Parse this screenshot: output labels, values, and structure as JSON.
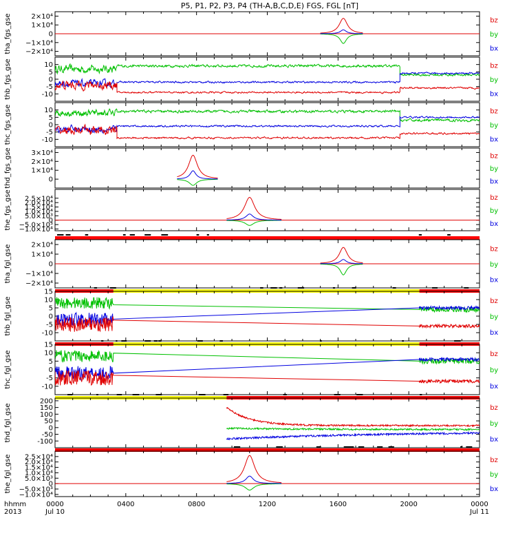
{
  "chart_data": {
    "type": "line",
    "title": "P5, P1, P2, P3, P4 (TH-A,B,C,D,E) FGS, FGL [nT]",
    "x_axis": {
      "tick_labels": [
        "0000",
        "0400",
        "0800",
        "1200",
        "1600",
        "2000",
        "0000"
      ],
      "tick_values_hours": [
        0,
        4,
        8,
        12,
        16,
        20,
        24
      ],
      "date_labels": [
        "Jul 10",
        "Jul 11"
      ],
      "left_labels": [
        "hhmm",
        "2013"
      ],
      "range_hours": [
        0,
        24
      ]
    },
    "components": [
      {
        "label": "bz",
        "color": "#e00000"
      },
      {
        "label": "by",
        "color": "#00c000"
      },
      {
        "label": "bx",
        "color": "#0000e0"
      }
    ],
    "status_bar_colors": {
      "red": "#ff0000",
      "yellow": "#ffff00",
      "black": "#000000"
    },
    "panels": [
      {
        "ylabel": "tha_fgs_gse",
        "ylim": [
          -25000,
          25000
        ],
        "yticks": [
          {
            "v": 20000,
            "t": "2×10⁴"
          },
          {
            "v": 10000,
            "t": "1×10⁴"
          },
          {
            "v": 0,
            "t": "0"
          },
          {
            "v": -10000,
            "t": "−1×10⁴"
          },
          {
            "v": -20000,
            "t": "−2×10⁴"
          }
        ],
        "series": [
          {
            "name": "bz",
            "kind": "peak",
            "start": 15.0,
            "end": 17.4,
            "center": 16.3,
            "base": 0,
            "amp": 17500,
            "width": 0.28
          },
          {
            "name": "by",
            "kind": "peak",
            "start": 15.0,
            "end": 17.4,
            "center": 16.3,
            "base": 0,
            "amp": -11000,
            "width": 0.22
          },
          {
            "name": "bx",
            "kind": "peak",
            "start": 15.0,
            "end": 17.4,
            "center": 16.3,
            "base": 0,
            "amp": 4500,
            "width": 0.2
          }
        ],
        "baseline": {
          "value": 0,
          "start": 0,
          "end": 24
        }
      },
      {
        "ylabel": "thb_fgs_gse",
        "ylim": [
          -15,
          15
        ],
        "yticks": [
          {
            "v": 10,
            "t": "10"
          },
          {
            "v": 5,
            "t": "5"
          },
          {
            "v": 0,
            "t": "0"
          },
          {
            "v": -5,
            "t": "-5"
          },
          {
            "v": -10,
            "t": "-10"
          }
        ],
        "series": [
          {
            "name": "by",
            "kind": "noisy",
            "segments": [
              [
                0,
                3.5,
                7,
                4.5
              ],
              [
                3.5,
                19.5,
                9,
                1.5
              ],
              [
                19.5,
                24,
                3,
                1.5
              ]
            ],
            "start": 0,
            "end": 24
          },
          {
            "name": "bx",
            "kind": "noisy",
            "segments": [
              [
                0,
                3.5,
                -3,
                4
              ],
              [
                3.5,
                19.5,
                -2,
                1
              ],
              [
                19.5,
                24,
                4,
                1
              ]
            ],
            "start": 0,
            "end": 24
          },
          {
            "name": "bz",
            "kind": "noisy",
            "segments": [
              [
                0,
                3.5,
                -4,
                5
              ],
              [
                3.5,
                19.5,
                -9,
                1
              ],
              [
                19.5,
                24,
                -6,
                1
              ]
            ],
            "start": 0,
            "end": 24
          }
        ]
      },
      {
        "ylabel": "thc_fgs_gse",
        "ylim": [
          -15,
          15
        ],
        "yticks": [
          {
            "v": 10,
            "t": "10"
          },
          {
            "v": 5,
            "t": "5"
          },
          {
            "v": 0,
            "t": "0"
          },
          {
            "v": -5,
            "t": "-5"
          },
          {
            "v": -10,
            "t": "-10"
          }
        ],
        "series": [
          {
            "name": "by",
            "kind": "noisy",
            "segments": [
              [
                0,
                3.5,
                8,
                4
              ],
              [
                3.5,
                19.5,
                9,
                1.5
              ],
              [
                19.5,
                24,
                3,
                1.5
              ]
            ],
            "start": 0,
            "end": 24
          },
          {
            "name": "bx",
            "kind": "noisy",
            "segments": [
              [
                0,
                3.5,
                -3,
                4
              ],
              [
                3.5,
                19.5,
                -1,
                1
              ],
              [
                19.5,
                24,
                5,
                1
              ]
            ],
            "start": 0,
            "end": 24
          },
          {
            "name": "bz",
            "kind": "noisy",
            "segments": [
              [
                0,
                3.5,
                -4,
                5
              ],
              [
                3.5,
                19.5,
                -9,
                1
              ],
              [
                19.5,
                24,
                -6,
                1
              ]
            ],
            "start": 0,
            "end": 24
          }
        ]
      },
      {
        "ylabel": "thd_fgs_gse",
        "ylim": [
          -10000,
          35000
        ],
        "yticks": [
          {
            "v": 30000,
            "t": "3×10⁴"
          },
          {
            "v": 20000,
            "t": "2×10⁴"
          },
          {
            "v": 10000,
            "t": "1×10⁴"
          },
          {
            "v": 0,
            "t": "0"
          }
        ],
        "series": [
          {
            "name": "bz",
            "kind": "peak",
            "start": 6.9,
            "end": 9.2,
            "center": 7.8,
            "base": 0,
            "amp": 27000,
            "width": 0.3
          },
          {
            "name": "by",
            "kind": "peak",
            "start": 6.9,
            "end": 9.2,
            "center": 7.8,
            "base": 0,
            "amp": -7000,
            "width": 0.25
          },
          {
            "name": "bx",
            "kind": "peak",
            "start": 6.9,
            "end": 9.2,
            "center": 7.8,
            "base": 0,
            "amp": 9500,
            "width": 0.2
          }
        ]
      },
      {
        "ylabel": "the_fgs_gse",
        "ylim": [
          -12000,
          35000
        ],
        "yticks": [
          {
            "v": 25000,
            "t": "2.5×10⁴"
          },
          {
            "v": 20000,
            "t": "2.0×10⁴"
          },
          {
            "v": 15000,
            "t": "1.5×10⁴"
          },
          {
            "v": 10000,
            "t": "1.0×10⁴"
          },
          {
            "v": 5000,
            "t": "5.0×10³"
          },
          {
            "v": 0,
            "t": "0"
          },
          {
            "v": -5000,
            "t": "−5.0×10³"
          },
          {
            "v": -10000,
            "t": "−1.0×10⁴"
          }
        ],
        "series": [
          {
            "name": "bz",
            "kind": "peak",
            "start": 9.7,
            "end": 12.8,
            "center": 11.0,
            "base": 0,
            "amp": 26000,
            "width": 0.35
          },
          {
            "name": "by",
            "kind": "peak",
            "start": 9.7,
            "end": 12.8,
            "center": 11.0,
            "base": 0,
            "amp": -6000,
            "width": 0.3
          },
          {
            "name": "bx",
            "kind": "peak",
            "start": 9.7,
            "end": 12.8,
            "center": 11.0,
            "base": 0,
            "amp": 7000,
            "width": 0.25
          }
        ],
        "baseline": {
          "value": 0,
          "start": 0,
          "end": 24
        },
        "status_after": [
          {
            "color": "red",
            "start": 0,
            "end": 24
          }
        ]
      },
      {
        "ylabel": "tha_fgl_gse",
        "ylim": [
          -25000,
          25000
        ],
        "yticks": [
          {
            "v": 20000,
            "t": "2×10⁴"
          },
          {
            "v": 10000,
            "t": "1×10⁴"
          },
          {
            "v": 0,
            "t": "0"
          },
          {
            "v": -10000,
            "t": "−1×10⁴"
          },
          {
            "v": -20000,
            "t": "−2×10⁴"
          }
        ],
        "series": [
          {
            "name": "bz",
            "kind": "peak",
            "start": 15.0,
            "end": 17.4,
            "center": 16.3,
            "base": 0,
            "amp": 17000,
            "width": 0.28
          },
          {
            "name": "by",
            "kind": "peak",
            "start": 15.0,
            "end": 17.4,
            "center": 16.3,
            "base": 0,
            "amp": -11500,
            "width": 0.22
          },
          {
            "name": "bx",
            "kind": "peak",
            "start": 15.0,
            "end": 17.4,
            "center": 16.3,
            "base": 0,
            "amp": 4500,
            "width": 0.2
          }
        ],
        "baseline": {
          "value": 0,
          "start": 0,
          "end": 24
        },
        "status_after": [
          {
            "color": "red",
            "start": 0,
            "end": 3.3
          },
          {
            "color": "yellow",
            "start": 3.3,
            "end": 20.6
          },
          {
            "color": "red",
            "start": 20.6,
            "end": 24
          }
        ]
      },
      {
        "ylabel": "thb_fgl_gse",
        "ylim": [
          -15,
          15
        ],
        "yticks": [
          {
            "v": 15,
            "t": "15"
          },
          {
            "v": 10,
            "t": "10"
          },
          {
            "v": 5,
            "t": "5"
          },
          {
            "v": 0,
            "t": "0"
          },
          {
            "v": -5,
            "t": "-5"
          },
          {
            "v": -10,
            "t": "-10"
          }
        ],
        "series": [
          {
            "name": "by",
            "kind": "gap",
            "a": [
              0,
              3.3,
              8,
              3.5
            ],
            "b": [
              20.6,
              24,
              4,
              1.5
            ],
            "start": 0,
            "end": 24
          },
          {
            "name": "bx",
            "kind": "gap",
            "a": [
              0,
              3.3,
              -2,
              4
            ],
            "b": [
              20.6,
              24,
              5,
              1
            ],
            "start": 0,
            "end": 24
          },
          {
            "name": "bz",
            "kind": "gap",
            "a": [
              0,
              3.3,
              -5,
              4.5
            ],
            "b": [
              20.6,
              24,
              -6,
              1
            ],
            "start": 0,
            "end": 24
          }
        ],
        "status_after": [
          {
            "color": "red",
            "start": 0,
            "end": 3.3
          },
          {
            "color": "yellow",
            "start": 3.3,
            "end": 20.6
          },
          {
            "color": "red",
            "start": 20.6,
            "end": 24
          }
        ]
      },
      {
        "ylabel": "thc_fgl_gse",
        "ylim": [
          -15,
          15
        ],
        "yticks": [
          {
            "v": 15,
            "t": "15"
          },
          {
            "v": 10,
            "t": "10"
          },
          {
            "v": 5,
            "t": "5"
          },
          {
            "v": 0,
            "t": "0"
          },
          {
            "v": -5,
            "t": "-5"
          },
          {
            "v": -10,
            "t": "-10"
          }
        ],
        "series": [
          {
            "name": "by",
            "kind": "gap",
            "a": [
              0,
              3.3,
              8,
              3.5
            ],
            "b": [
              20.6,
              24,
              5,
              1.5
            ],
            "start": 0,
            "end": 24
          },
          {
            "name": "bx",
            "kind": "gap",
            "a": [
              0,
              3.3,
              -2,
              4
            ],
            "b": [
              20.6,
              24,
              6,
              1
            ],
            "start": 0,
            "end": 24
          },
          {
            "name": "bz",
            "kind": "gap",
            "a": [
              0,
              3.3,
              -5,
              4.5
            ],
            "b": [
              20.6,
              24,
              -7,
              1
            ],
            "start": 0,
            "end": 24
          }
        ],
        "status_after": [
          {
            "color": "yellow",
            "start": 0,
            "end": 9.7
          },
          {
            "color": "red",
            "start": 9.7,
            "end": 24
          }
        ]
      },
      {
        "ylabel": "thd_fgl_gse",
        "ylim": [
          -150,
          220
        ],
        "yticks": [
          {
            "v": 200,
            "t": "200"
          },
          {
            "v": 150,
            "t": "150"
          },
          {
            "v": 100,
            "t": "100"
          },
          {
            "v": 50,
            "t": "50"
          },
          {
            "v": 0,
            "t": "0"
          },
          {
            "v": -50,
            "t": "-50"
          },
          {
            "v": -100,
            "t": "-100"
          }
        ],
        "series": [
          {
            "name": "bz",
            "kind": "decay",
            "start": 9.7,
            "end": 24,
            "from": 150,
            "to": 15,
            "tau": 1.3,
            "noise": 6
          },
          {
            "name": "by",
            "kind": "decay",
            "start": 9.7,
            "end": 24,
            "from": -5,
            "to": -15,
            "tau": 5,
            "noise": 6
          },
          {
            "name": "bx",
            "kind": "decay",
            "start": 9.7,
            "end": 24,
            "from": -85,
            "to": -30,
            "tau": 9,
            "noise": 7
          }
        ],
        "status_after": [
          {
            "color": "red",
            "start": 0,
            "end": 24
          }
        ]
      },
      {
        "ylabel": "the_fgl_gse",
        "ylim": [
          -12000,
          30000
        ],
        "yticks": [
          {
            "v": 25000,
            "t": "2.5×10⁴"
          },
          {
            "v": 20000,
            "t": "2.0×10⁴"
          },
          {
            "v": 15000,
            "t": "1.5×10⁴"
          },
          {
            "v": 10000,
            "t": "1.0×10⁴"
          },
          {
            "v": 5000,
            "t": "5.0×10³"
          },
          {
            "v": 0,
            "t": "0"
          },
          {
            "v": -5000,
            "t": "−5.0×10³"
          },
          {
            "v": -10000,
            "t": "−1.0×10⁴"
          }
        ],
        "series": [
          {
            "name": "bz",
            "kind": "peak",
            "start": 9.7,
            "end": 12.8,
            "center": 11.0,
            "base": 0,
            "amp": 26000,
            "width": 0.35
          },
          {
            "name": "by",
            "kind": "peak",
            "start": 9.7,
            "end": 12.8,
            "center": 11.0,
            "base": 0,
            "amp": -6000,
            "width": 0.3
          },
          {
            "name": "bx",
            "kind": "peak",
            "start": 9.7,
            "end": 12.8,
            "center": 11.0,
            "base": 0,
            "amp": 7000,
            "width": 0.25
          }
        ],
        "baseline": {
          "value": 0,
          "start": 0,
          "end": 24
        }
      }
    ]
  }
}
